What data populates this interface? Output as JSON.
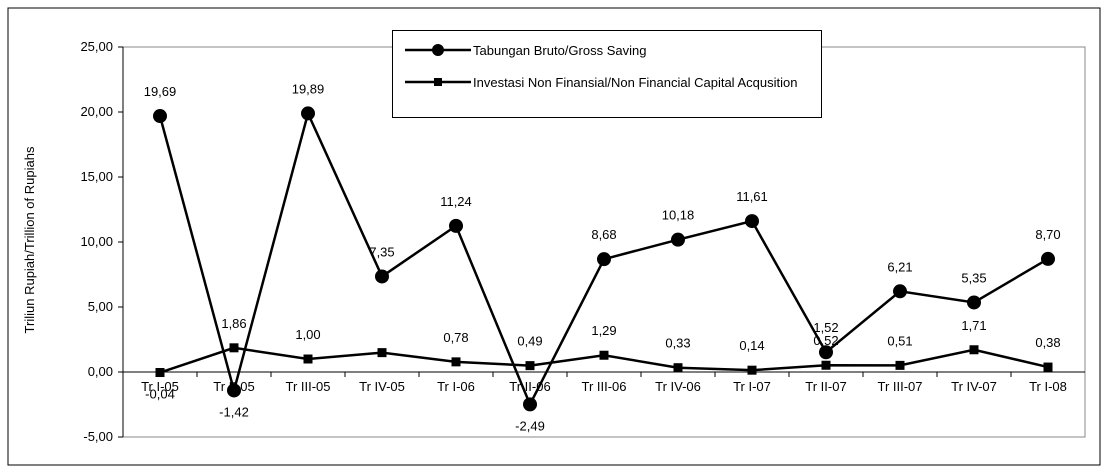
{
  "chart_data": {
    "type": "line",
    "y_label": "Triliun Rupiah/Trillion of Rupiahs",
    "categories": [
      "Tr I-05",
      "Tr II-05",
      "Tr III-05",
      "Tr IV-05",
      "Tr I-06",
      "Tr II-06",
      "Tr III-06",
      "Tr IV-06",
      "Tr I-07",
      "Tr II-07",
      "Tr III-07",
      "Tr IV-07",
      "Tr I-08"
    ],
    "series": [
      {
        "name": "Tabungan Bruto/Gross Saving",
        "color": "#000000",
        "marker": "circle",
        "values": [
          19.69,
          -1.42,
          19.89,
          7.35,
          11.24,
          -2.49,
          8.68,
          10.18,
          11.61,
          1.52,
          6.21,
          5.35,
          8.7
        ],
        "value_labels": [
          "19,69",
          "-1,42",
          "19,89",
          "7,35",
          "11,24",
          "-2,49",
          "8,68",
          "10,18",
          "11,61",
          "1,52",
          "6,21",
          "5,35",
          "8,70"
        ]
      },
      {
        "name": "Investasi Non Finansial/Non Financial Capital Acqusition",
        "color": "#000000",
        "marker": "square",
        "values": [
          -0.04,
          1.86,
          1.0,
          1.49,
          0.78,
          0.49,
          1.29,
          0.33,
          0.14,
          0.52,
          0.51,
          1.71,
          0.38
        ],
        "value_labels": [
          "-0,04",
          "1,86",
          "1,00",
          null,
          "0,78",
          "0,49",
          "1,29",
          "0,33",
          "0,14",
          "0,52",
          "0,51",
          "1,71",
          "0,38"
        ]
      }
    ],
    "ylim": [
      -5,
      25
    ],
    "yticks": [
      {
        "value": -5,
        "label": "-5,00"
      },
      {
        "value": 0,
        "label": "0,00"
      },
      {
        "value": 5,
        "label": "5,00"
      },
      {
        "value": 10,
        "label": "10,00"
      },
      {
        "value": 15,
        "label": "15,00"
      },
      {
        "value": 20,
        "label": "20,00"
      },
      {
        "value": 25,
        "label": "25,00"
      }
    ],
    "grid": false
  }
}
